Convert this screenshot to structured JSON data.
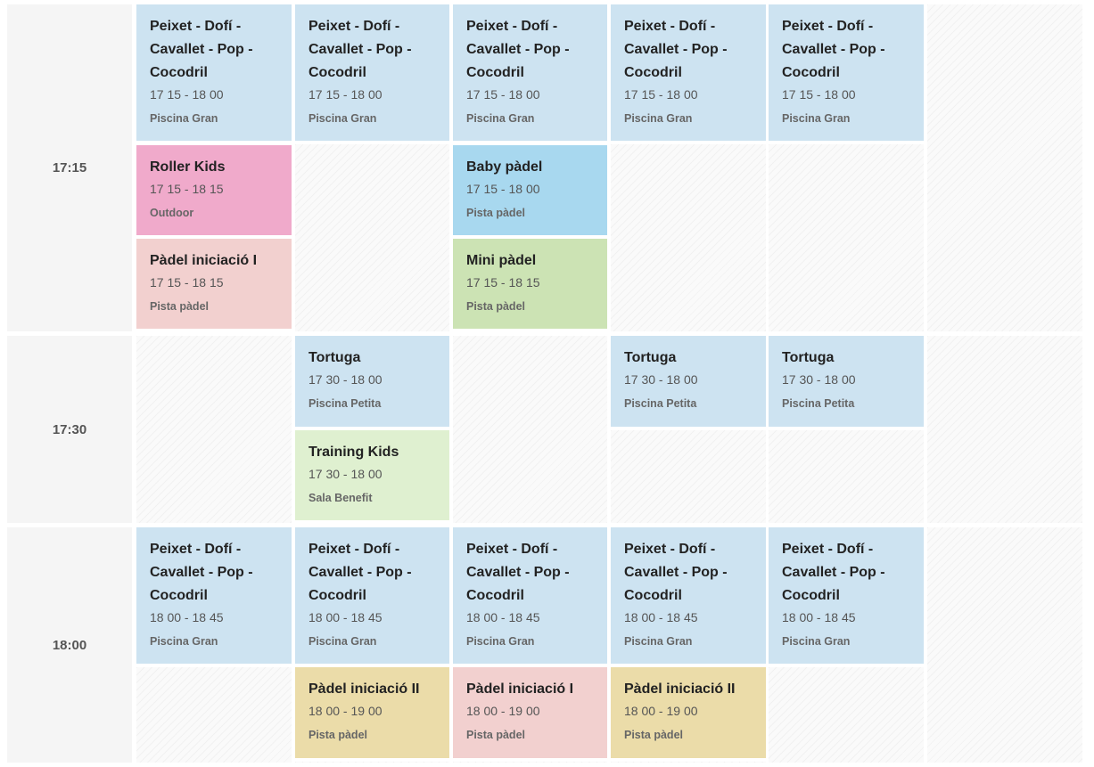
{
  "colors": {
    "swim": "#cde3f1",
    "roller": "#f0aacb",
    "padel_beginner_1": "#f2d0cf",
    "baby_padel": "#a8d8ef",
    "mini_padel": "#cce3b4",
    "training": "#dff0d0",
    "padel_beginner_2": "#ebdca9"
  },
  "rows": [
    {
      "time_label": "17:15",
      "columns": [
        [
          {
            "title": "Peixet - Dofí - Cavallet - Pop - Cocodril",
            "time": "17 15 - 18 00",
            "place": "Piscina Gran",
            "color": "swim"
          },
          {
            "title": "Roller Kids",
            "time": "17 15 - 18 15",
            "place": "Outdoor",
            "color": "roller"
          },
          {
            "title": "Pàdel iniciació I",
            "time": "17 15 - 18 15",
            "place": "Pista pàdel",
            "color": "padel_beginner_1"
          }
        ],
        [
          {
            "title": "Peixet - Dofí - Cavallet - Pop - Cocodril",
            "time": "17 15 - 18 00",
            "place": "Piscina Gran",
            "color": "swim"
          }
        ],
        [
          {
            "title": "Peixet - Dofí - Cavallet - Pop - Cocodril",
            "time": "17 15 - 18 00",
            "place": "Piscina Gran",
            "color": "swim"
          },
          {
            "title": "Baby pàdel",
            "time": "17 15 - 18 00",
            "place": "Pista pàdel",
            "color": "baby_padel"
          },
          {
            "title": "Mini pàdel",
            "time": "17 15 - 18 15",
            "place": "Pista pàdel",
            "color": "mini_padel"
          }
        ],
        [
          {
            "title": "Peixet - Dofí - Cavallet - Pop - Cocodril",
            "time": "17 15 - 18 00",
            "place": "Piscina Gran",
            "color": "swim"
          }
        ],
        [
          {
            "title": "Peixet - Dofí - Cavallet - Pop - Cocodril",
            "time": "17 15 - 18 00",
            "place": "Piscina Gran",
            "color": "swim"
          }
        ],
        []
      ]
    },
    {
      "time_label": "17:30",
      "columns": [
        [],
        [
          {
            "title": "Tortuga",
            "time": "17 30 - 18 00",
            "place": "Piscina Petita",
            "color": "swim"
          },
          {
            "title": "Training Kids",
            "time": "17 30 - 18 00",
            "place": "Sala Benefit",
            "color": "training"
          }
        ],
        [],
        [
          {
            "title": "Tortuga",
            "time": "17 30 - 18 00",
            "place": "Piscina Petita",
            "color": "swim"
          }
        ],
        [
          {
            "title": "Tortuga",
            "time": "17 30 - 18 00",
            "place": "Piscina Petita",
            "color": "swim"
          }
        ],
        []
      ]
    },
    {
      "time_label": "18:00",
      "columns": [
        [
          {
            "title": "Peixet - Dofí - Cavallet - Pop - Cocodril",
            "time": "18 00 - 18 45",
            "place": "Piscina Gran",
            "color": "swim"
          }
        ],
        [
          {
            "title": "Peixet - Dofí - Cavallet - Pop - Cocodril",
            "time": "18 00 - 18 45",
            "place": "Piscina Gran",
            "color": "swim"
          },
          {
            "title": "Pàdel iniciació II",
            "time": "18 00 - 19 00",
            "place": "Pista pàdel",
            "color": "padel_beginner_2"
          }
        ],
        [
          {
            "title": "Peixet - Dofí - Cavallet - Pop - Cocodril",
            "time": "18 00 - 18 45",
            "place": "Piscina Gran",
            "color": "swim"
          },
          {
            "title": "Pàdel iniciació I",
            "time": "18 00 - 19 00",
            "place": "Pista pàdel",
            "color": "padel_beginner_1"
          }
        ],
        [
          {
            "title": "Peixet - Dofí - Cavallet - Pop - Cocodril",
            "time": "18 00 - 18 45",
            "place": "Piscina Gran",
            "color": "swim"
          },
          {
            "title": "Pàdel iniciació II",
            "time": "18 00 - 19 00",
            "place": "Pista pàdel",
            "color": "padel_beginner_2"
          }
        ],
        [
          {
            "title": "Peixet - Dofí - Cavallet - Pop - Cocodril",
            "time": "18 00 - 18 45",
            "place": "Piscina Gran",
            "color": "swim"
          }
        ],
        []
      ]
    }
  ]
}
